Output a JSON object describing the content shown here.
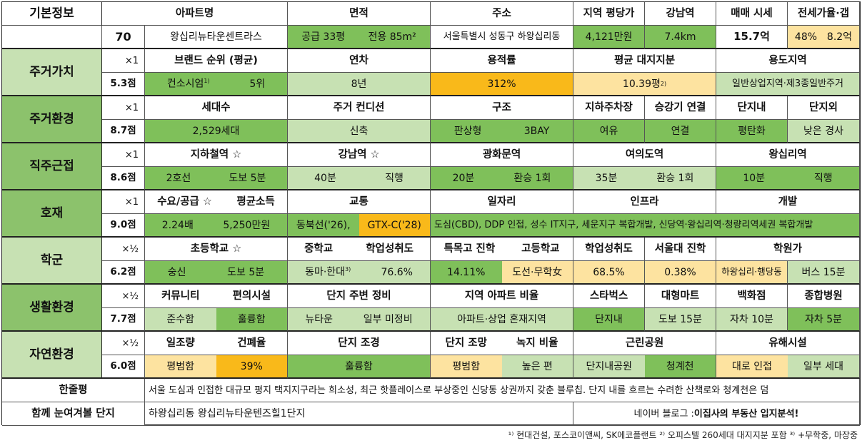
{
  "basic": {
    "label": "기본정보",
    "score": "70",
    "headers": [
      "아파트명",
      "면적",
      "주소",
      "지역 평당가",
      "강남역",
      "매매 시세",
      "전세가율·갭"
    ],
    "apt_name": "왕십리뉴타운센트라스",
    "area_supply": "공급 33평",
    "area_exclusive": "전용 85m²",
    "address": "서울특별시 성동구 하왕십리동",
    "price_per_pyeong": "4,121만원",
    "gangnam_distance": "7.4km",
    "sale_price": "15.7억",
    "jeonse_rate": "48%",
    "gap": "8.2억"
  },
  "residential_value": {
    "label": "주거가치",
    "mult": "×1",
    "score": "5.3점",
    "headers": [
      "브랜드 순위 (평균)",
      "연차",
      "용적률",
      "평균 대지지분",
      "용도지역"
    ],
    "brand": "컨소시엄",
    "brand_note": "1)",
    "brand_rank": "5위",
    "age": "8년",
    "far": "312%",
    "land_share": "10.39평",
    "land_note": "2)",
    "zoning": "일반상업지역·제3종일반주거"
  },
  "residential_env": {
    "label": "주거환경",
    "mult": "×1",
    "score": "8.7점",
    "headers": [
      "세대수",
      "주거 컨디션",
      "구조",
      "지하주차장",
      "승강기 연결",
      "단지내",
      "단지외"
    ],
    "households": "2,529세대",
    "condition": "신축",
    "type1": "판상형",
    "type2": "3BAY",
    "parking": "여유",
    "elevator": "연결",
    "inner": "평탄화",
    "outer": "낮은 경사"
  },
  "commute": {
    "label": "직주근접",
    "mult": "×1",
    "score": "8.6점",
    "headers": [
      "지하철역 ☆",
      "강남역 ☆",
      "광화문역",
      "여의도역",
      "왕십리역"
    ],
    "subway_line": "2호선",
    "subway_walk": "도보 5분",
    "gangnam_time": "40분",
    "gangnam_mode": "직행",
    "gwanghwamun_time": "20분",
    "gwanghwamun_mode": "환승 1회",
    "yeouido_time": "35분",
    "yeouido_mode": "환승 1회",
    "wangsimni_time": "10분",
    "wangsimni_mode": "직행"
  },
  "development": {
    "label": "호재",
    "mult": "×1",
    "score": "9.0점",
    "headers": [
      "수요/공급 ☆",
      "평균소득",
      "교통",
      "일자리",
      "인프라",
      "개발"
    ],
    "supply_demand": "2.24배",
    "avg_income": "5,250만원",
    "transport1": "동북선('26),",
    "transport2": "GTX-C('28)",
    "jobs_infra_dev": "도심(CBD), DDP 인접, 성수 IT지구, 세운지구 복합개발, 신당역·왕십리역·청량리역세권 복합개발"
  },
  "school": {
    "label": "학군",
    "mult": "×½",
    "score": "6.2점",
    "headers": [
      "초등학교 ☆",
      "중학교",
      "학업성취도",
      "특목고 진학",
      "고등학교",
      "학업성취도",
      "서울대 진학",
      "학원가"
    ],
    "elementary": "숭신",
    "elementary_walk": "도보 5분",
    "middle": "동마·한대",
    "middle_note": "3)",
    "middle_score": "76.6%",
    "special_hs": "14.11%",
    "high": "도선·무학女",
    "high_score": "68.5%",
    "snu": "0.38%",
    "academy": "하왕십리·행당동",
    "academy_bus": "버스 15분"
  },
  "living_env": {
    "label": "생활환경",
    "mult": "×½",
    "score": "7.7점",
    "headers": [
      "커뮤니티",
      "편의시설",
      "단지 주변 정비",
      "지역 아파트 비율",
      "스타벅스",
      "대형마트",
      "백화점",
      "종합병원"
    ],
    "community": "준수함",
    "amenities": "훌륭함",
    "surround1": "뉴타운",
    "surround2": "일부 미정비",
    "apt_ratio": "아파트·상업 혼재지역",
    "starbucks": "단지내",
    "mart": "도보 15분",
    "dept": "자차 10분",
    "hospital": "자차 5분"
  },
  "nature": {
    "label": "자연환경",
    "mult": "×½",
    "score": "6.0점",
    "headers": [
      "일조량",
      "건폐율",
      "단지 조경",
      "단지 조망",
      "녹지 비율",
      "근린공원",
      "유해시설"
    ],
    "sunlight": "평범함",
    "bcr": "39%",
    "landscape": "훌륭함",
    "view": "평범함",
    "green": "높은 편",
    "park1": "단지내공원",
    "park2": "청계천",
    "hazard1": "대로 인접",
    "hazard2": "일부 세대"
  },
  "summary": {
    "label": "한줄평",
    "text": "서울 도심과 인접한 대규모 평지 택지지구라는 희소성, 최근 핫플레이스로 부상중인 신당동 상권까지 갖춘 블루칩. 단지 내를 흐르는 수려한 산책로와 청계천은 덤"
  },
  "related": {
    "label": "함께 눈여겨볼 단지",
    "text": "하왕십리동 왕십리뉴타운텐즈힐1단지",
    "blog_prefix": "네이버 블로그 : ",
    "blog_name": "이집사의 부동산 입지분석!"
  },
  "footnote": "¹⁾ 현대건설, 포스코이앤씨, SK에코플랜트 ²⁾ 오피스텔 260세대 대지지분 포함 ³⁾ +무학중, 마장중",
  "colors": {
    "light_green": "#c7e1b3",
    "green": "#7fc05a",
    "yellow": "#fde3a0",
    "orange": "#f9b91a"
  }
}
